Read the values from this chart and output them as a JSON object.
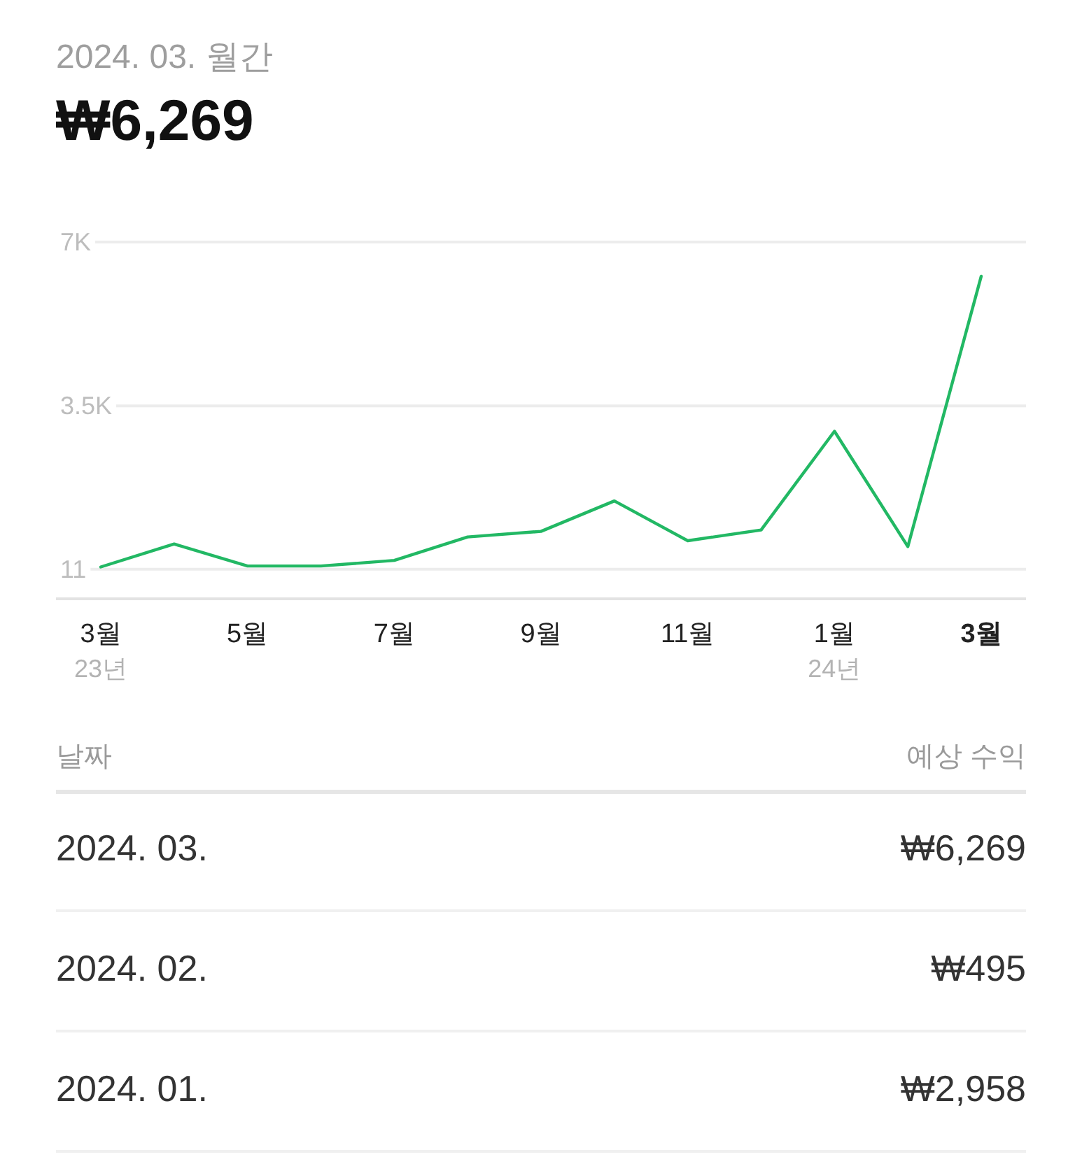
{
  "chart_data": {
    "type": "line",
    "subtitle": "2024. 03. 월간",
    "title": "₩6,269",
    "categories": [
      "3월\n23년",
      null,
      "5월",
      null,
      "7월",
      null,
      "9월",
      null,
      "11월",
      null,
      "1월\n24년",
      null,
      "3월"
    ],
    "series": [
      {
        "color": "#22b864",
        "values": [
          60,
          550,
          80,
          80,
          200,
          700,
          820,
          1470,
          620,
          850,
          2958,
          495,
          6269
        ]
      }
    ],
    "ylim": [
      -620,
      7000
    ],
    "yticks": [
      11,
      {
        "value": 3500,
        "label": "3.5K"
      },
      {
        "value": 7000,
        "label": "7K"
      }
    ],
    "grid": "y",
    "line_style": "solid",
    "annotations": [
      "날짜",
      "예상 수익",
      "2024. 03.",
      "₩6,269",
      "2024. 02.",
      "₩495",
      "2024. 01.",
      "₩2,958"
    ]
  }
}
